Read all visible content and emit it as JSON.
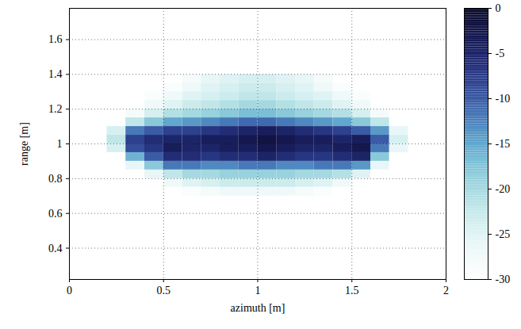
{
  "chart_data": {
    "type": "heatmap",
    "xlabel": "azimuth [m]",
    "ylabel": "range [m]",
    "xlim": [
      0,
      2
    ],
    "xticks": [
      0,
      0.5,
      1,
      1.5,
      2
    ],
    "ylim": [
      0.22,
      1.78
    ],
    "yticks": [
      0.4,
      0.6,
      0.8,
      1,
      1.2,
      1.4,
      1.6
    ],
    "grid": true,
    "azimuth": [
      0.25,
      0.35,
      0.45,
      0.55,
      0.65,
      0.75,
      0.85,
      0.95,
      1.05,
      1.15,
      1.25,
      1.35,
      1.45,
      1.55,
      1.65,
      1.75
    ],
    "range": [
      1.375,
      1.325,
      1.275,
      1.225,
      1.175,
      1.125,
      1.075,
      1.025,
      0.975,
      0.925,
      0.875,
      0.825,
      0.775,
      0.725
    ],
    "values": [
      [
        -30,
        -30,
        -30,
        -30,
        -28,
        -26,
        -25,
        -24,
        -24,
        -25,
        -26,
        -28,
        -30,
        -30,
        -30,
        -30
      ],
      [
        -30,
        -30,
        -30,
        -29,
        -27,
        -25,
        -24,
        -23,
        -23,
        -24,
        -25,
        -27,
        -29,
        -30,
        -30,
        -30
      ],
      [
        -30,
        -30,
        -29,
        -27,
        -25,
        -24,
        -23,
        -22,
        -22,
        -23,
        -24,
        -25,
        -27,
        -29,
        -30,
        -30
      ],
      [
        -30,
        -30,
        -27,
        -25,
        -23,
        -22,
        -21,
        -20,
        -20,
        -21,
        -22,
        -23,
        -25,
        -27,
        -30,
        -30
      ],
      [
        -30,
        -28,
        -24,
        -21,
        -20,
        -19,
        -18,
        -17,
        -17,
        -18,
        -19,
        -20,
        -21,
        -24,
        -28,
        -30
      ],
      [
        -30,
        -22,
        -18,
        -15,
        -14,
        -13,
        -12,
        -11,
        -11,
        -12,
        -13,
        -14,
        -15,
        -18,
        -22,
        -30
      ],
      [
        -24,
        -12,
        -10,
        -8,
        -8,
        -7,
        -6,
        -5,
        -4,
        -5,
        -6,
        -7,
        -8,
        -10,
        -14,
        -26
      ],
      [
        -22,
        -8,
        -6,
        -5,
        -5,
        -4,
        -4,
        -3,
        -2,
        -3,
        -4,
        -4,
        -5,
        -4,
        -10,
        -24
      ],
      [
        -24,
        -9,
        -7,
        -4,
        -5,
        -5,
        -4,
        -4,
        -3,
        -4,
        -5,
        -5,
        -4,
        -3,
        -12,
        -26
      ],
      [
        -30,
        -16,
        -10,
        -6,
        -6,
        -7,
        -6,
        -6,
        -5,
        -6,
        -7,
        -7,
        -6,
        -5,
        -18,
        -30
      ],
      [
        -30,
        -26,
        -18,
        -12,
        -12,
        -13,
        -13,
        -12,
        -12,
        -13,
        -13,
        -12,
        -12,
        -14,
        -26,
        -30
      ],
      [
        -30,
        -30,
        -26,
        -22,
        -20,
        -20,
        -19,
        -19,
        -19,
        -19,
        -20,
        -20,
        -21,
        -25,
        -30,
        -30
      ],
      [
        -30,
        -30,
        -30,
        -27,
        -25,
        -24,
        -23,
        -23,
        -23,
        -23,
        -24,
        -25,
        -27,
        -30,
        -30,
        -30
      ],
      [
        -30,
        -30,
        -30,
        -30,
        -29,
        -28,
        -27,
        -27,
        -27,
        -27,
        -28,
        -29,
        -30,
        -30,
        -30,
        -30
      ]
    ],
    "clim": [
      -30,
      0
    ],
    "cticks": [
      0,
      -5,
      -10,
      -15,
      -20,
      -25,
      -30
    ]
  }
}
